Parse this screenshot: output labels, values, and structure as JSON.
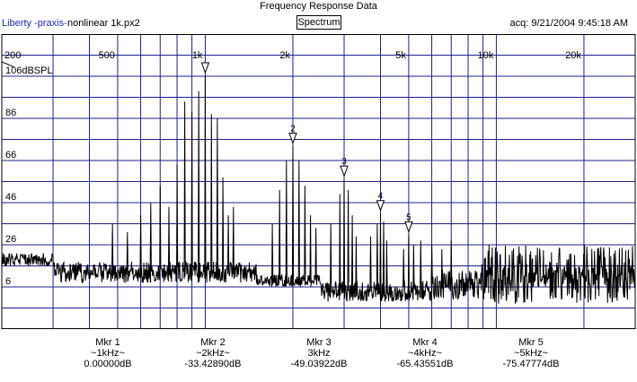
{
  "window": {
    "title": "Frequency Response Data"
  },
  "header": {
    "app_name": "Liberty -praxis-",
    "file_name": "nonlinear 1k.px2",
    "view_mode": "Spectrum",
    "acq_time": "acq: 9/21/2004 9:45:18 AM"
  },
  "chart_data": {
    "type": "line",
    "title": "Frequency Response Data",
    "x_scale": "log",
    "xlim": [
      200,
      30000
    ],
    "ylim": [
      -14,
      126
    ],
    "x_tick_labels": [
      {
        "value": 200,
        "label": "200"
      },
      {
        "value": 500,
        "label": "500"
      },
      {
        "value": 1000,
        "label": "1k"
      },
      {
        "value": 2000,
        "label": "2k"
      },
      {
        "value": 5000,
        "label": "5k"
      },
      {
        "value": 10000,
        "label": "10k"
      },
      {
        "value": 20000,
        "label": "20k"
      }
    ],
    "y_tick_labels": [
      {
        "value": 106,
        "label": "106dBSPL"
      },
      {
        "value": 86,
        "label": "86"
      },
      {
        "value": 66,
        "label": "66"
      },
      {
        "value": 46,
        "label": "46"
      },
      {
        "value": 26,
        "label": "26"
      },
      {
        "value": 6,
        "label": "6"
      }
    ],
    "grid": true,
    "colors": {
      "trace": "#000000",
      "grid": "#1f1f8f",
      "border": "#000000"
    },
    "harmonic_peaks": [
      {
        "frequency": 1000,
        "level": 106,
        "marker": ""
      },
      {
        "frequency": 2000,
        "level": 72.6,
        "marker": "2"
      },
      {
        "frequency": 3000,
        "level": 57,
        "marker": "3"
      },
      {
        "frequency": 4000,
        "level": 40.6,
        "marker": "4"
      },
      {
        "frequency": 5000,
        "level": 30.5,
        "marker": "5"
      }
    ],
    "sidebands": [
      {
        "frequency": 850,
        "level": 94
      },
      {
        "frequency": 900,
        "level": 89
      },
      {
        "frequency": 950,
        "level": 99
      },
      {
        "frequency": 1050,
        "level": 88
      },
      {
        "frequency": 1100,
        "level": 86
      },
      {
        "frequency": 1150,
        "level": 58
      },
      {
        "frequency": 800,
        "level": 64
      },
      {
        "frequency": 1800,
        "level": 52
      },
      {
        "frequency": 1900,
        "level": 66
      },
      {
        "frequency": 2100,
        "level": 66
      },
      {
        "frequency": 2200,
        "level": 54
      },
      {
        "frequency": 2900,
        "level": 50
      },
      {
        "frequency": 3100,
        "level": 52
      },
      {
        "frequency": 3900,
        "level": 36
      },
      {
        "frequency": 4100,
        "level": 37
      }
    ]
  },
  "markers": [
    {
      "name": "Mkr 1",
      "freq": "~1kHz~",
      "value": "0.00000dB"
    },
    {
      "name": "Mkr 2",
      "freq": "~2kHz~",
      "value": "-33.42890dB"
    },
    {
      "name": "Mkr 3",
      "freq": "3kHz",
      "value": "-49.03922dB"
    },
    {
      "name": "Mkr 4",
      "freq": "~4kHz~",
      "value": "-65.43551dB"
    },
    {
      "name": "Mkr 5",
      "freq": "~5kHz~",
      "value": "-75.47774dB"
    }
  ]
}
